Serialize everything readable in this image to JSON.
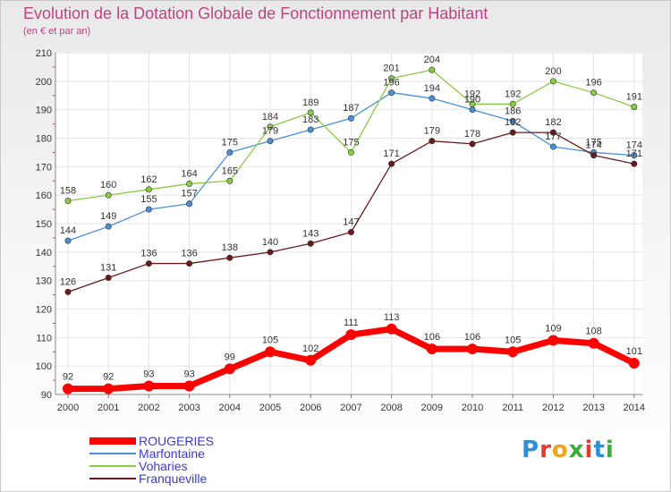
{
  "title": "Evolution de la Dotation Globale de Fonctionnement par Habitant",
  "subtitle": "(en € et par an)",
  "logo": {
    "text": "Proxiti",
    "colors": [
      "#2f8fd8",
      "#e23b2a",
      "#f3a21b",
      "#3aae3a",
      "#e23b2a",
      "#2f8fd8",
      "#3aae3a"
    ]
  },
  "chart_data": {
    "type": "line",
    "x": [
      "2000",
      "2001",
      "2002",
      "2003",
      "2004",
      "2005",
      "2006",
      "2007",
      "2008",
      "2009",
      "2010",
      "2011",
      "2012",
      "2013",
      "2014"
    ],
    "ylim": [
      90,
      210
    ],
    "yticks": [
      "90",
      "100",
      "110",
      "120",
      "130",
      "140",
      "150",
      "160",
      "170",
      "180",
      "190",
      "200",
      "210"
    ],
    "grid": true,
    "legend_position": "bottom-left",
    "series": [
      {
        "name": "ROUGERIES",
        "color": "#ff0000",
        "values": [
          92,
          92,
          93,
          93,
          99,
          105,
          102,
          111,
          113,
          106,
          106,
          105,
          109,
          108,
          101
        ]
      },
      {
        "name": "Marfontaine",
        "color": "#4a90d9",
        "values": [
          144,
          149,
          155,
          157,
          175,
          179,
          183,
          187,
          196,
          194,
          190,
          186,
          177,
          175,
          174
        ]
      },
      {
        "name": "Voharies",
        "color": "#88cc44",
        "values": [
          158,
          160,
          162,
          164,
          165,
          184,
          189,
          175,
          201,
          204,
          192,
          192,
          200,
          196,
          191
        ]
      },
      {
        "name": "Franqueville",
        "color": "#6b1a1a",
        "values": [
          126,
          131,
          136,
          136,
          138,
          140,
          143,
          147,
          171,
          179,
          178,
          182,
          182,
          174,
          171
        ]
      }
    ]
  }
}
